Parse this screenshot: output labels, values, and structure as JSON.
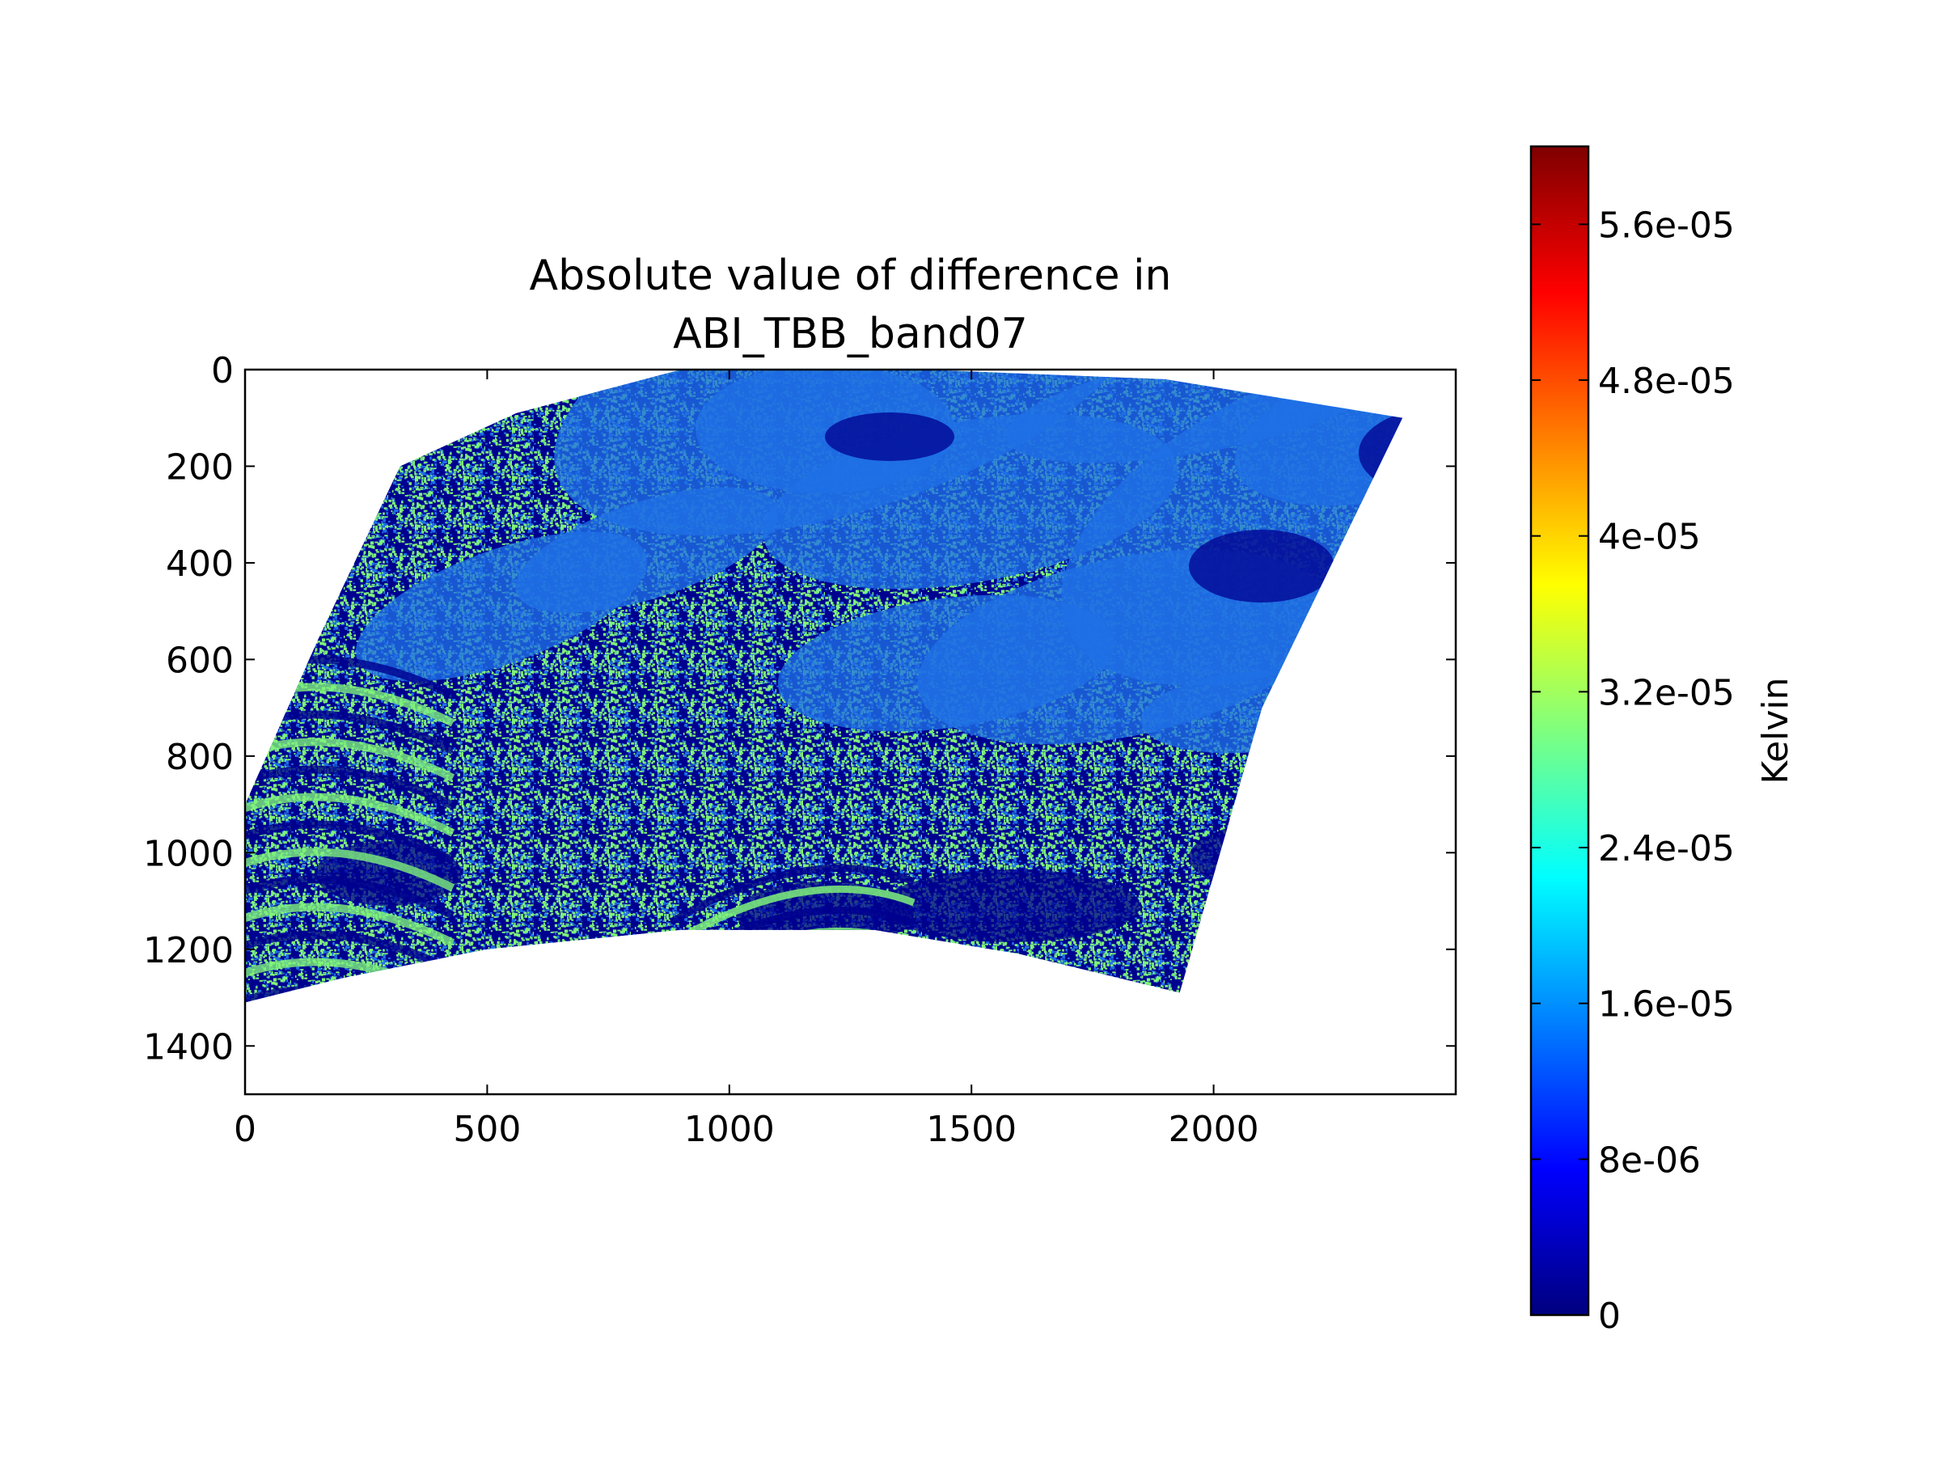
{
  "chart_data": {
    "type": "heatmap",
    "title_lines": [
      "Absolute value of difference in",
      "ABI_TBB_band07"
    ],
    "xlabel": "",
    "ylabel": "",
    "xlim": [
      0,
      2500
    ],
    "ylim": [
      1500,
      0
    ],
    "y_axis_inverted": true,
    "x_ticks": [
      {
        "value": 0,
        "label": "0"
      },
      {
        "value": 500,
        "label": "500"
      },
      {
        "value": 1000,
        "label": "1000"
      },
      {
        "value": 1500,
        "label": "1500"
      },
      {
        "value": 2000,
        "label": "2000"
      }
    ],
    "y_ticks": [
      {
        "value": 0,
        "label": "0"
      },
      {
        "value": 200,
        "label": "200"
      },
      {
        "value": 400,
        "label": "400"
      },
      {
        "value": 600,
        "label": "600"
      },
      {
        "value": 800,
        "label": "800"
      },
      {
        "value": 1000,
        "label": "1000"
      },
      {
        "value": 1200,
        "label": "1200"
      },
      {
        "value": 1400,
        "label": "1400"
      }
    ],
    "swath_outline": [
      [
        320,
        200
      ],
      [
        560,
        90
      ],
      [
        900,
        0
      ],
      [
        1400,
        0
      ],
      [
        1900,
        20
      ],
      [
        2390,
        100
      ],
      [
        2100,
        700
      ],
      [
        1930,
        1290
      ],
      [
        1600,
        1210
      ],
      [
        1300,
        1160
      ],
      [
        900,
        1160
      ],
      [
        500,
        1200
      ],
      [
        200,
        1260
      ],
      [
        0,
        1310
      ],
      [
        0,
        900
      ],
      [
        150,
        560
      ]
    ],
    "grid": false,
    "colorbar": {
      "label": "Kelvin",
      "colormap": "jet",
      "range": [
        0,
        6e-05
      ],
      "ticks": [
        {
          "value": 0,
          "label": "0"
        },
        {
          "value": 8e-06,
          "label": "8e-06"
        },
        {
          "value": 1.6e-05,
          "label": "1.6e-05"
        },
        {
          "value": 2.4e-05,
          "label": "2.4e-05"
        },
        {
          "value": 3.2e-05,
          "label": "3.2e-05"
        },
        {
          "value": 4e-05,
          "label": "4e-05"
        },
        {
          "value": 4.8e-05,
          "label": "4.8e-05"
        },
        {
          "value": 5.6e-05,
          "label": "5.6e-05"
        }
      ],
      "stops": [
        "#00007f",
        "#0000ff",
        "#007fff",
        "#00ffff",
        "#7fff7f",
        "#ffff00",
        "#ff7f00",
        "#ff0000",
        "#7f0000"
      ]
    },
    "dominant_value_colors": {
      "zero": "#00008f",
      "low": "#1f6fe6",
      "mid": "#7ff27a"
    }
  }
}
